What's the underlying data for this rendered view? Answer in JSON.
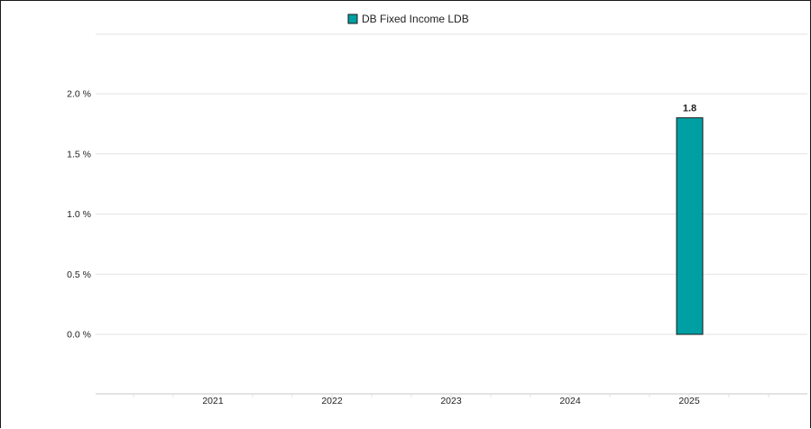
{
  "chart_data": {
    "type": "bar",
    "categories": [
      "2021",
      "2022",
      "2023",
      "2024",
      "2025"
    ],
    "series": [
      {
        "name": "DB Fixed Income LDB",
        "values": [
          null,
          null,
          null,
          null,
          1.8
        ],
        "data_labels": [
          "",
          "",
          "",
          "",
          "1.8"
        ],
        "color": "#009fa3"
      }
    ],
    "yticks": [
      0.0,
      0.5,
      1.0,
      1.5,
      2.0
    ],
    "ytick_labels": [
      "0.0 %",
      "0.5 %",
      "1.0 %",
      "1.5 %",
      "2.0 %"
    ],
    "ylim": [
      0,
      2.0
    ],
    "grid": true,
    "legend_position": "top-center",
    "title": "",
    "xlabel": "",
    "ylabel": ""
  },
  "colors": {
    "grid": "#e3e3e3",
    "bar_outline": "#1a1a1a"
  }
}
